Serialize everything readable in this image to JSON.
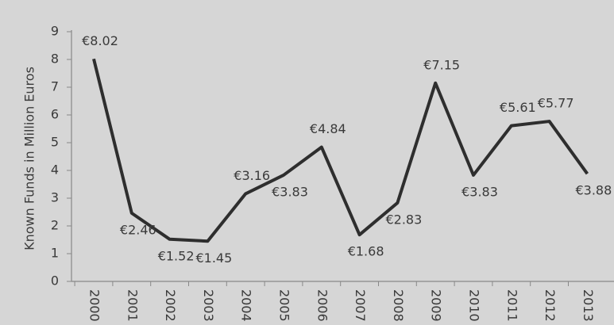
{
  "chart_data": {
    "type": "line",
    "y_axis_label": "Known Funds in Million Euros",
    "categories": [
      "2000",
      "2001",
      "2002",
      "2003",
      "2004",
      "2005",
      "2006",
      "2007",
      "2008",
      "2009",
      "2010",
      "2011",
      "2012",
      "2013"
    ],
    "series": [
      {
        "name": "Known Funds",
        "color": "#2e2e2e",
        "values": [
          8.02,
          2.46,
          1.52,
          1.45,
          3.16,
          3.83,
          4.84,
          1.68,
          2.83,
          7.15,
          3.83,
          5.61,
          5.77,
          3.88
        ],
        "value_labels": [
          "€8.02",
          "€2.46",
          "€1.52",
          "€1.45",
          "€3.16",
          "€3.83",
          "€4.84",
          "€1.68",
          "€2.83",
          "€7.15",
          "€3.83",
          "€5.61",
          "€5.77",
          "€3.88"
        ]
      }
    ],
    "ylim": [
      0,
      9
    ],
    "yticks": [
      0,
      1,
      2,
      3,
      4,
      5,
      6,
      7,
      8,
      9
    ],
    "grid": false
  }
}
